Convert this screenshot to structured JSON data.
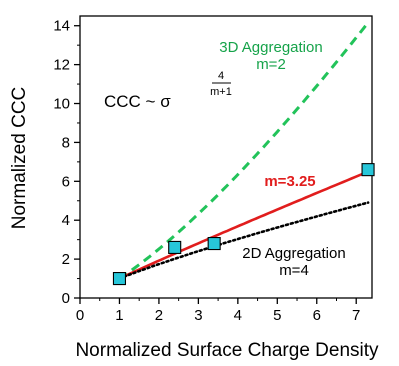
{
  "chart_data": {
    "type": "line",
    "xlabel": "Normalized Surface Charge Density",
    "ylabel": "Normalized CCC",
    "xlim": [
      0,
      7.4
    ],
    "ylim": [
      0,
      14.5
    ],
    "xticks": [
      0,
      1,
      2,
      3,
      4,
      5,
      6,
      7
    ],
    "yticks": [
      0,
      2,
      4,
      6,
      8,
      10,
      12,
      14
    ],
    "grid": false,
    "formula": {
      "base": "CCC ~ σ",
      "exp_num": "4",
      "exp_den": "m+1"
    },
    "series": [
      {
        "style": "dashed",
        "color": "#22c35a",
        "exponent": 1.3333,
        "x_range": [
          1,
          7.3
        ],
        "labels": [
          "3D Aggregation",
          "m=2"
        ]
      },
      {
        "style": "solid",
        "color": "#e11d1d",
        "exponent": 0.9412,
        "x_range": [
          1,
          7.3
        ],
        "labels": [
          "m=3.25"
        ]
      },
      {
        "style": "dotted",
        "color": "#000000",
        "exponent": 0.8,
        "x_range": [
          1,
          7.3
        ],
        "labels": [
          "2D Aggregation",
          "m=4"
        ]
      }
    ],
    "markers": {
      "shape": "square",
      "color": "#27c6d9",
      "points": [
        {
          "x": 1.0,
          "y": 1.0
        },
        {
          "x": 2.4,
          "y": 2.6
        },
        {
          "x": 3.4,
          "y": 2.8
        },
        {
          "x": 7.3,
          "y": 6.6
        }
      ]
    }
  }
}
